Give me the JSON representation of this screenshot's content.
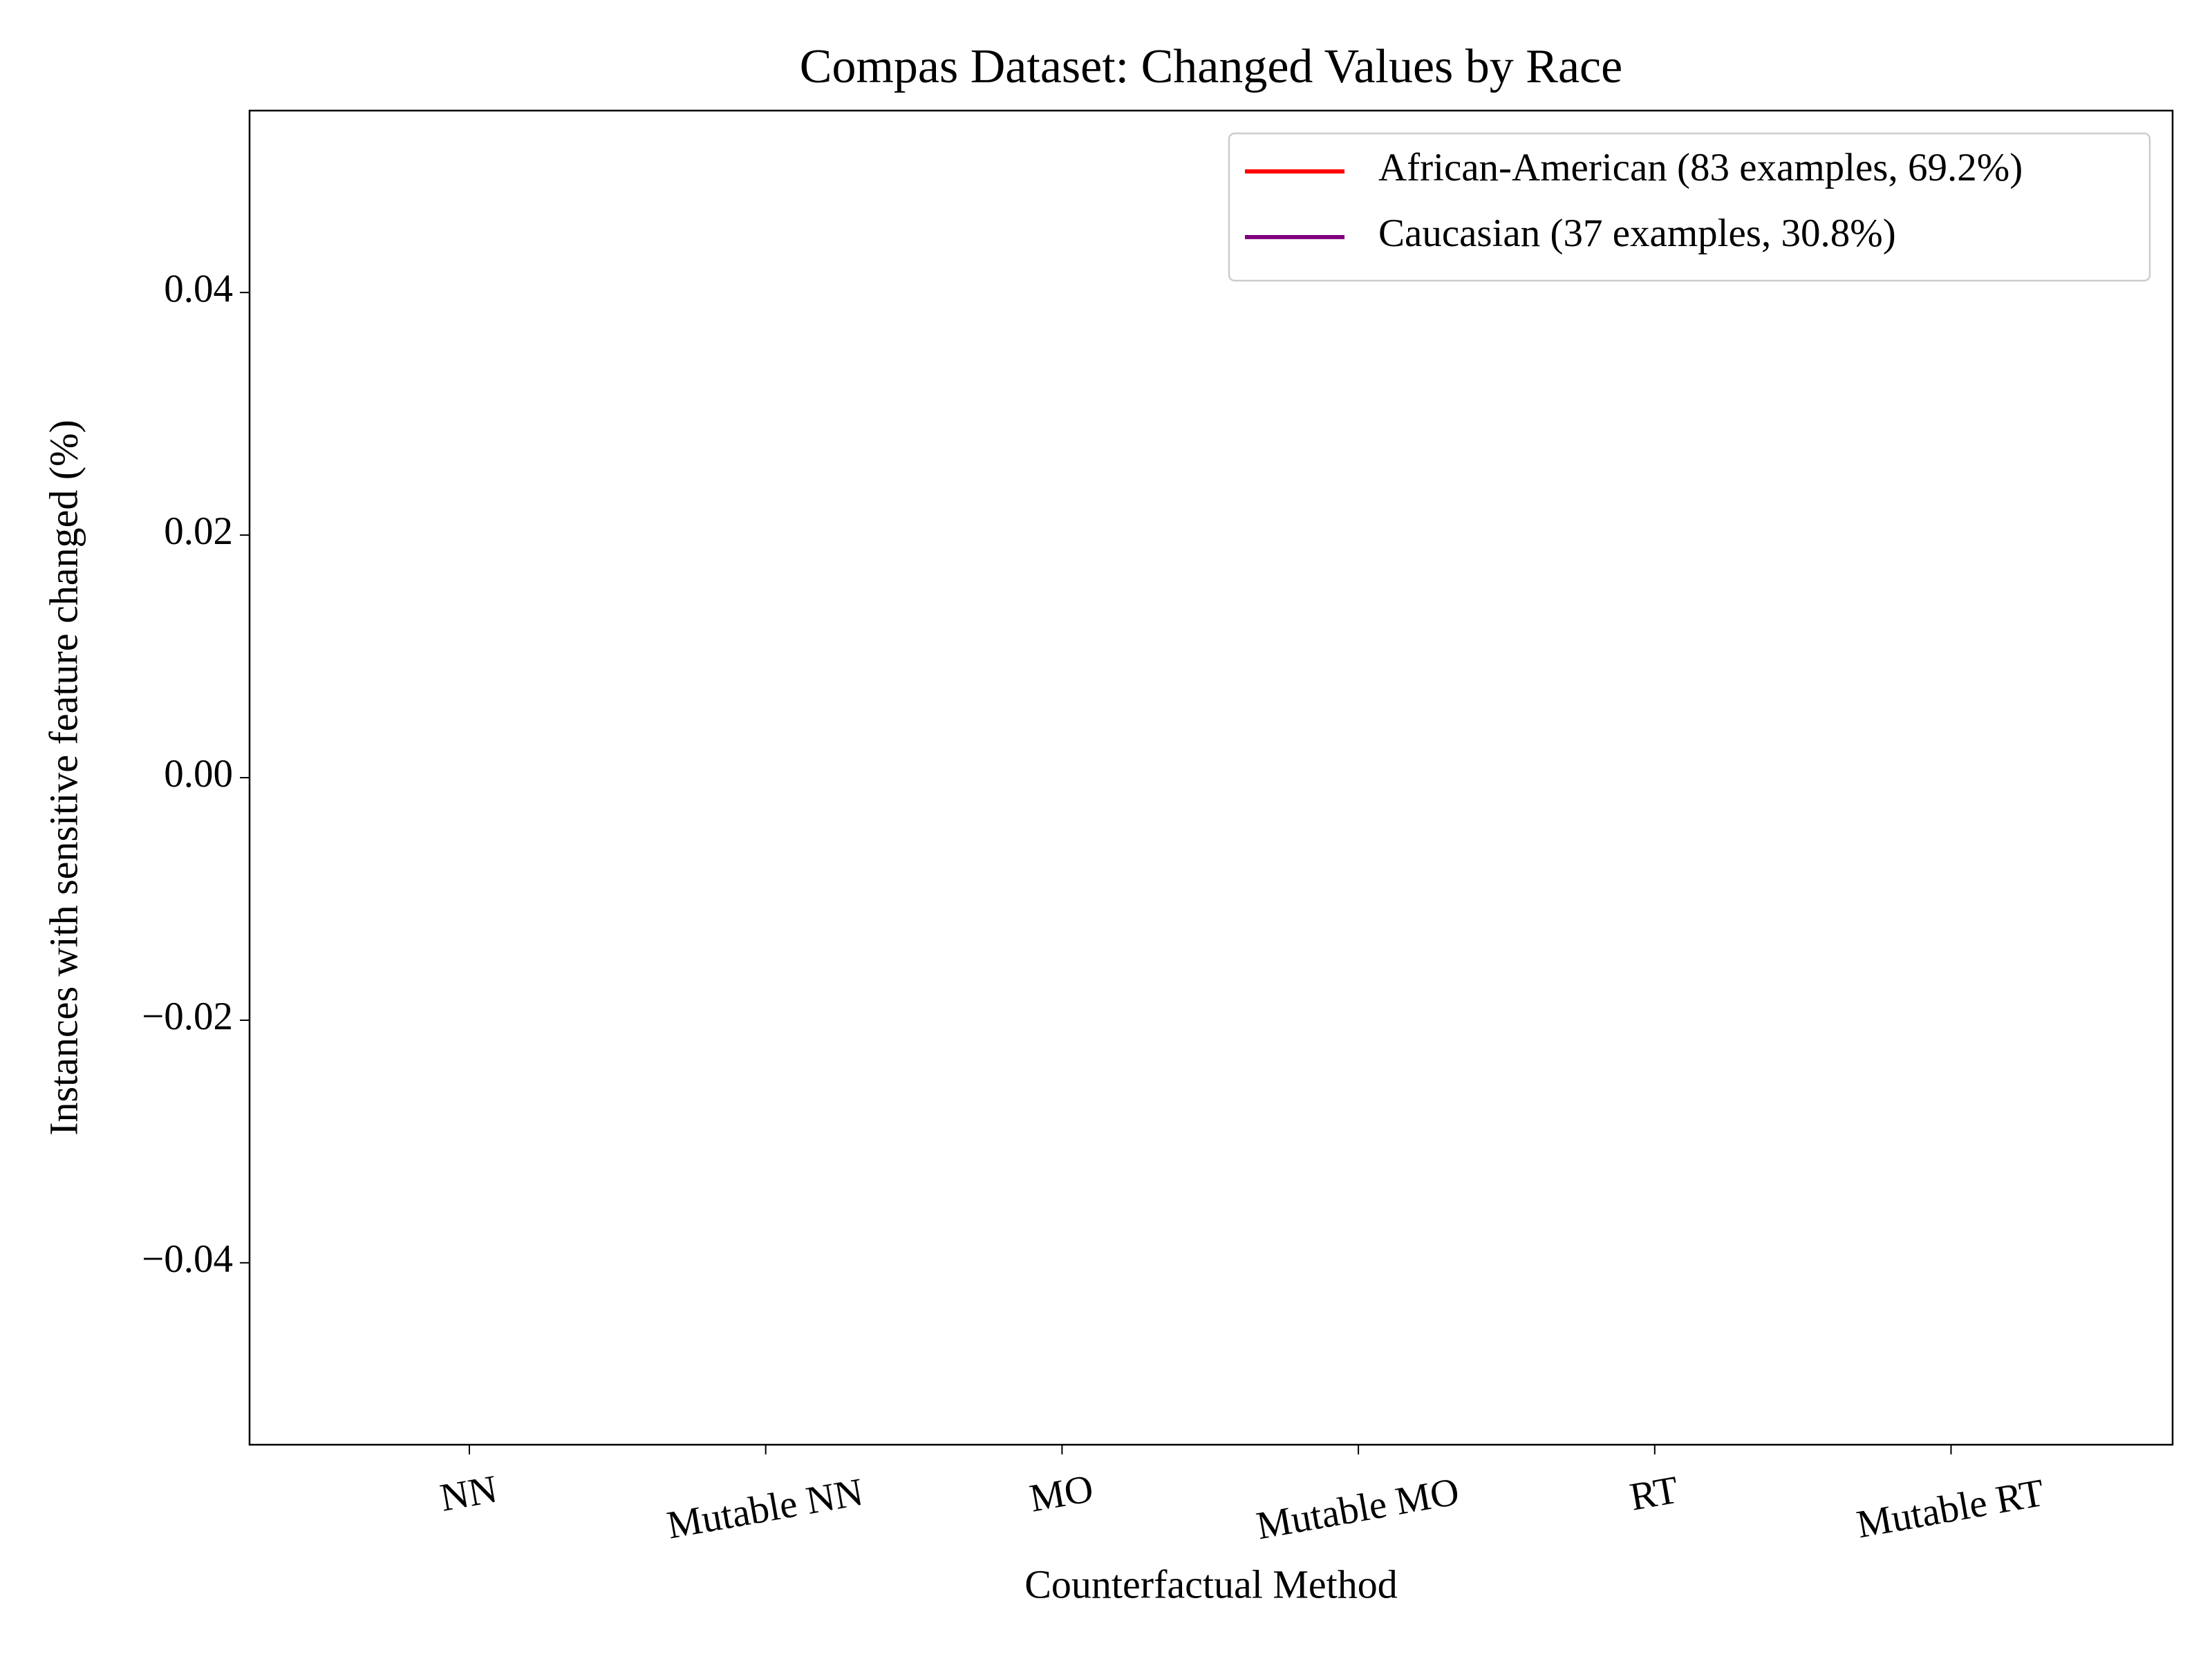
{
  "chart_data": {
    "type": "bar",
    "title": "Compas Dataset: Changed Values by Race",
    "xlabel": "Counterfactual Method",
    "ylabel": "Instances with sensitive feature changed (%)",
    "categories": [
      "NN",
      "Mutable NN",
      "MO",
      "Mutable MO",
      "RT",
      "Mutable RT"
    ],
    "series": [
      {
        "name": "African-American (83 examples, 69.2%)",
        "color": "#ff0000",
        "values": [
          0,
          0,
          0,
          0,
          0,
          0
        ]
      },
      {
        "name": "Caucasian (37 examples, 30.8%)",
        "color": "#800080",
        "values": [
          0,
          0,
          0,
          0,
          0,
          0
        ]
      }
    ],
    "ylim": [
      -0.055,
      0.055
    ],
    "yticks": [
      {
        "value": -0.04,
        "label": "−0.04"
      },
      {
        "value": -0.02,
        "label": "−0.02"
      },
      {
        "value": 0,
        "label": "0.00"
      },
      0.02,
      0.04
    ],
    "legend": "upper right",
    "grid": false
  }
}
